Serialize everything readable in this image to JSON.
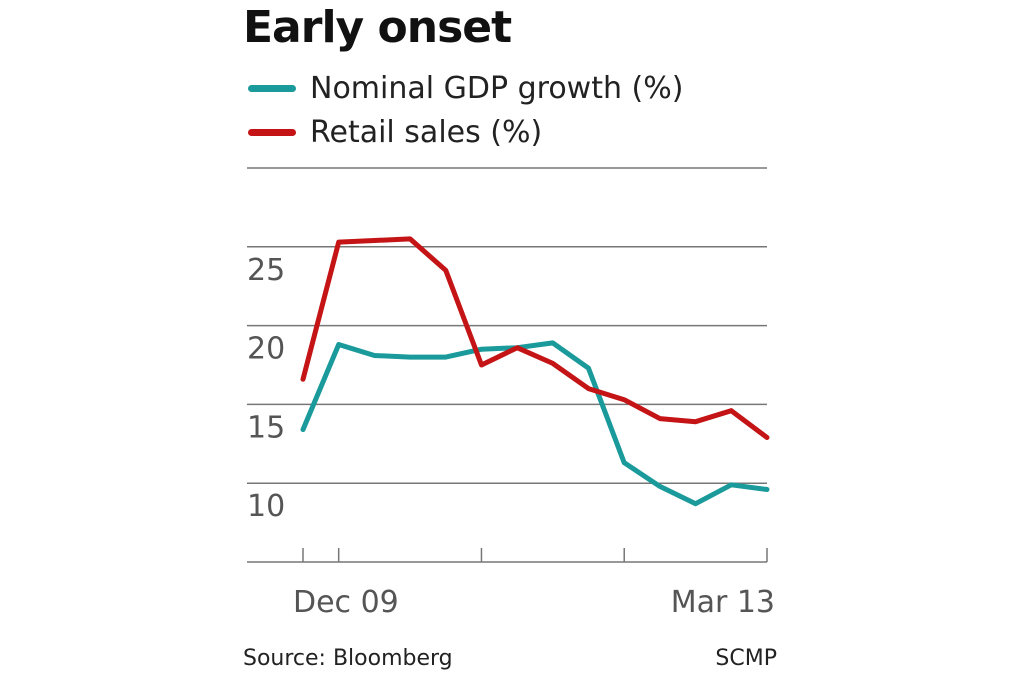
{
  "chart_data": {
    "type": "line",
    "title": "Early onset",
    "xlabel": "",
    "ylabel": "",
    "x_tick_labels": [
      "Dec 09",
      "Mar 13"
    ],
    "y_ticks": [
      10,
      15,
      20,
      25
    ],
    "ylim": [
      5,
      30
    ],
    "grid": "horizontal",
    "legend_position": "top-left",
    "series": [
      {
        "name": "Nominal GDP growth (%)",
        "color": "#1a9a9a",
        "values": [
          13.4,
          18.8,
          18.1,
          18.0,
          18.0,
          18.5,
          18.6,
          18.9,
          17.3,
          11.3,
          9.8,
          8.7,
          9.9,
          9.6
        ]
      },
      {
        "name": "Retail sales (%)",
        "color": "#c41416",
        "values": [
          16.6,
          25.3,
          25.4,
          25.5,
          23.5,
          17.5,
          18.6,
          17.6,
          16.0,
          15.3,
          14.1,
          13.9,
          14.6,
          12.9
        ]
      }
    ],
    "x_positions": [
      0,
      1,
      2,
      3,
      4,
      5,
      6,
      7,
      8,
      9,
      10,
      11,
      12,
      13
    ]
  },
  "footer": {
    "source": "Source: Bloomberg",
    "credit": "SCMP"
  }
}
